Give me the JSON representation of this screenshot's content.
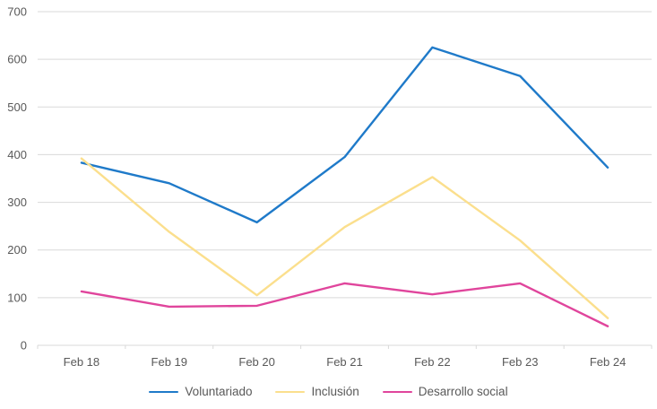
{
  "chart_data": {
    "type": "line",
    "title": "",
    "xlabel": "",
    "ylabel": "",
    "categories": [
      "Feb 18",
      "Feb 19",
      "Feb 20",
      "Feb 21",
      "Feb 22",
      "Feb 23",
      "Feb 24"
    ],
    "series": [
      {
        "name": "Voluntariado",
        "color": "#1f7ac9",
        "values": [
          383,
          340,
          258,
          395,
          625,
          565,
          373
        ]
      },
      {
        "name": "Inclusión",
        "color": "#fbdf8d",
        "values": [
          392,
          238,
          105,
          248,
          353,
          220,
          57
        ]
      },
      {
        "name": "Desarrollo social",
        "color": "#e0459c",
        "values": [
          113,
          81,
          83,
          130,
          107,
          130,
          40
        ]
      }
    ],
    "ylim": [
      0,
      700
    ],
    "ytick_step": 100,
    "grid": true,
    "legend_position": "bottom"
  },
  "colors": {
    "grid": "#d9d9d9",
    "axis_text": "#595959",
    "legend_text": "#595959",
    "background": "#ffffff"
  }
}
